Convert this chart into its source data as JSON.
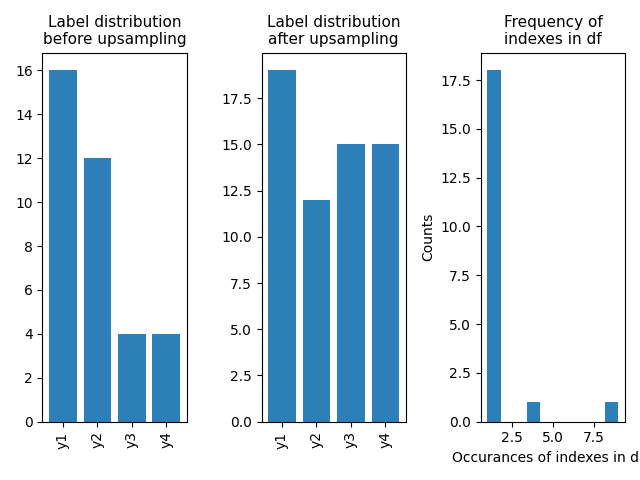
{
  "subplot1": {
    "title": "Label distribution\nbefore upsampling",
    "categories": [
      "y1",
      "y2",
      "y3",
      "y4"
    ],
    "values": [
      16,
      12,
      4,
      4
    ],
    "bar_color": "#2d7fb8",
    "yticks": [
      0,
      2,
      4,
      6,
      8,
      10,
      12,
      14,
      16
    ],
    "use_float_yticks": false
  },
  "subplot2": {
    "title": "Label distribution\nafter upsampling",
    "categories": [
      "y1",
      "y2",
      "y3",
      "y4"
    ],
    "values": [
      19,
      12,
      15,
      15
    ],
    "bar_color": "#2d7fb8",
    "yticks": [
      0.0,
      2.5,
      5.0,
      7.5,
      10.0,
      12.5,
      15.0,
      17.5
    ],
    "use_float_yticks": true
  },
  "subplot3": {
    "title": "Frequency of\nindexes in df",
    "xlabel": "Occurances of indexes in dat",
    "ylabel": "Counts",
    "bar_color": "#2d7fb8",
    "hist_data": [
      1,
      1,
      1,
      1,
      1,
      1,
      1,
      1,
      1,
      1,
      1,
      1,
      1,
      1,
      1,
      1,
      1,
      1,
      4,
      9
    ],
    "bins": 10,
    "yticks": [
      0.0,
      2.5,
      5.0,
      7.5,
      10.0,
      12.5,
      15.0,
      17.5
    ]
  },
  "title_fontsize": 11,
  "figsize": [
    6.4,
    4.8
  ],
  "dpi": 100
}
